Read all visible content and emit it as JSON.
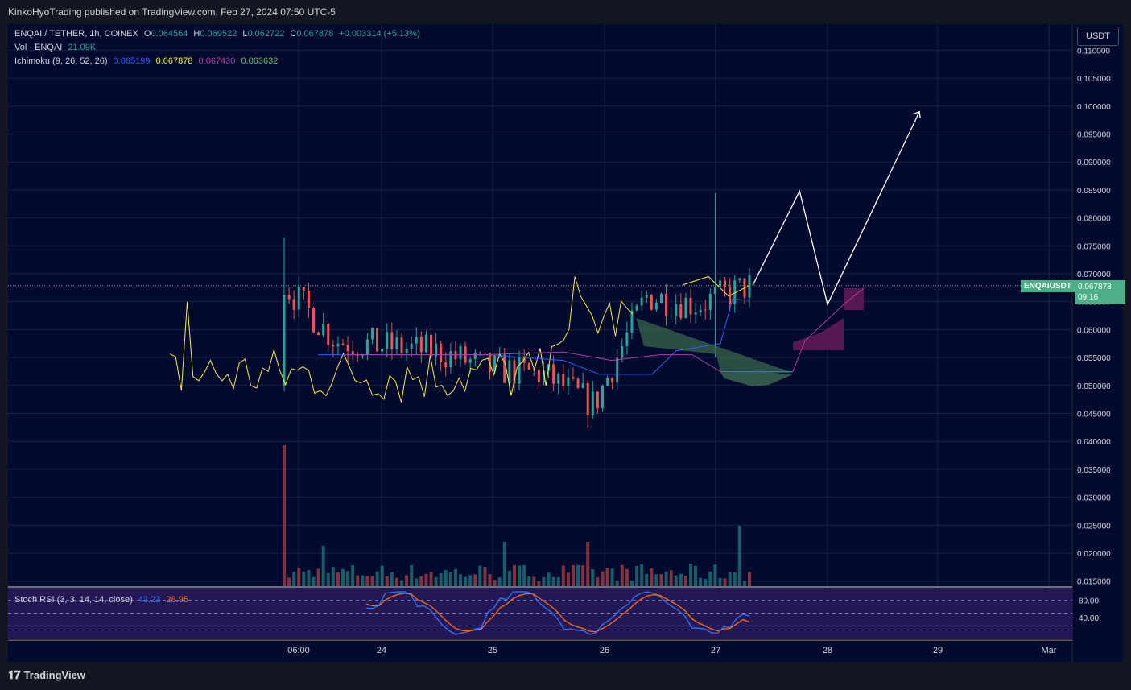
{
  "header": {
    "publish_text": "KinkoHyoTrading published on TradingView.com, Feb 27, 2024 07:50 UTC-5"
  },
  "symbol_line": {
    "symbol": "ENQAI / TETHER, 1h, COINEX",
    "o_label": "O",
    "o_value": "0.064564",
    "h_label": "H",
    "h_value": "0.069522",
    "l_label": "L",
    "l_value": "0.062722",
    "c_label": "C",
    "c_value": "0.067878",
    "change": "+0.003314 (+5.13%)"
  },
  "vol_line": {
    "label": "Vol · ENQAI",
    "value": "21.09K"
  },
  "ichimoku_line": {
    "label": "Ichimoku (9, 26, 52, 26)",
    "v1": "0.065199",
    "v2": "0.067878",
    "v3": "0.067430",
    "v4": "0.063632"
  },
  "stoch_line": {
    "label": "Stoch RSI (3, 3, 14, 14, close)",
    "k": "43.23",
    "d": "28.95"
  },
  "currency_button": "USDT",
  "price_tag": {
    "symbol": "ENQAIUSDT",
    "price": "0.067878",
    "countdown": "09:16"
  },
  "footer": {
    "logo_glyph": "𝟏𝟕",
    "brand": "TradingView"
  },
  "colors": {
    "background": "#020A2D",
    "up": "#26a69a",
    "down": "#ef5350",
    "lagging": "#ffeb3b",
    "conversion": "#2962ff",
    "base": "#b03ea4",
    "kumo_up": "#3d6b4f",
    "kumo_down": "#6a1b5a",
    "stoch_k": "#2979ff",
    "stoch_d": "#ff6d00",
    "projection": "#ffffff"
  },
  "chart_data": {
    "type": "candlestick",
    "title": "ENQAI / TETHER, 1h, COINEX",
    "y_axis": {
      "min": 0.015,
      "max": 0.11,
      "ticks": [
        "0.110000",
        "0.105000",
        "0.100000",
        "0.095000",
        "0.090000",
        "0.085000",
        "0.080000",
        "0.075000",
        "0.070000",
        "0.065000",
        "0.060000",
        "0.055000",
        "0.050000",
        "0.045000",
        "0.040000",
        "0.035000",
        "0.030000",
        "0.025000",
        "0.020000",
        "0.015000"
      ]
    },
    "x_axis": {
      "labels": [
        "06:00",
        "24",
        "25",
        "26",
        "27",
        "28",
        "29",
        "Mar"
      ]
    },
    "last_price": 0.067878,
    "candles_approx": [
      {
        "t": "23 06:00",
        "o": 0.05,
        "h": 0.0765,
        "l": 0.049,
        "c": 0.068
      },
      {
        "t": "23 12:00",
        "o": 0.055,
        "h": 0.065,
        "l": 0.049,
        "c": 0.058
      },
      {
        "t": "24 00:00",
        "o": 0.052,
        "h": 0.061,
        "l": 0.049,
        "c": 0.057
      },
      {
        "t": "24 12:00",
        "o": 0.054,
        "h": 0.058,
        "l": 0.05,
        "c": 0.056
      },
      {
        "t": "25 00:00",
        "o": 0.057,
        "h": 0.062,
        "l": 0.048,
        "c": 0.053
      },
      {
        "t": "25 12:00",
        "o": 0.056,
        "h": 0.061,
        "l": 0.049,
        "c": 0.052
      },
      {
        "t": "26 00:00",
        "o": 0.05,
        "h": 0.057,
        "l": 0.0425,
        "c": 0.0465
      },
      {
        "t": "26 12:00",
        "o": 0.049,
        "h": 0.07,
        "l": 0.048,
        "c": 0.066
      },
      {
        "t": "27 00:00",
        "o": 0.057,
        "h": 0.0845,
        "l": 0.055,
        "c": 0.0645
      },
      {
        "t": "27 07:00",
        "o": 0.064564,
        "h": 0.069522,
        "l": 0.062722,
        "c": 0.067878
      }
    ],
    "ichimoku": {
      "conversion_last": 0.065199,
      "base_last": 0.06743,
      "lagging_last": 0.067878,
      "lead_last": 0.063632
    },
    "projection_path": [
      {
        "t": "27 08:00",
        "price": 0.068
      },
      {
        "t": "27 18:00",
        "price": 0.0848
      },
      {
        "t": "28 00:00",
        "price": 0.0645
      },
      {
        "t": "28 20:00",
        "price": 0.099
      }
    ],
    "volume": {
      "last": "21.09K"
    },
    "stoch_rsi": {
      "k_last": 43.23,
      "d_last": 28.95,
      "levels": [
        "80.00",
        "40.00"
      ]
    }
  }
}
